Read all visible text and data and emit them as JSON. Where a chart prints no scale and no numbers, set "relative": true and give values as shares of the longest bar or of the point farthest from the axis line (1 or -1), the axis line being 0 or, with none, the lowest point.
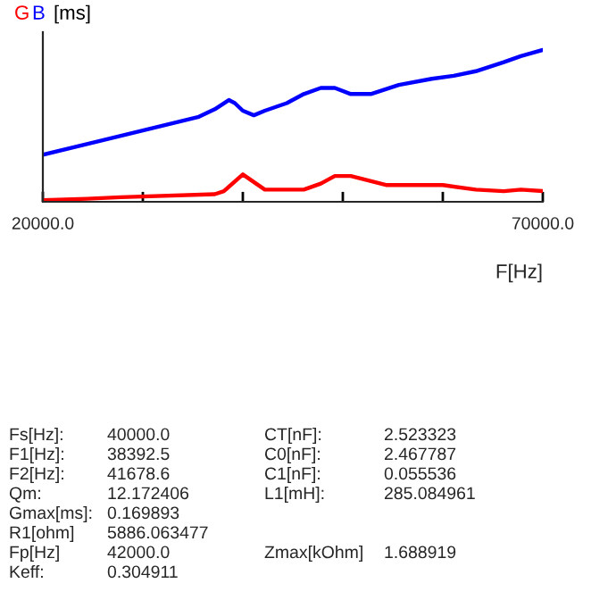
{
  "chart_data": {
    "type": "line",
    "relative": true,
    "ylabel": "[ms]",
    "xlabel": "F[Hz]",
    "xlim": [
      20000,
      70000
    ],
    "xticks": [
      {
        "value": 20000,
        "label": "20000.0"
      },
      {
        "value": 30000,
        "label": null
      },
      {
        "value": 40000,
        "label": null
      },
      {
        "value": 50000,
        "label": null
      },
      {
        "value": 60000,
        "label": null
      },
      {
        "value": 70000,
        "label": "70000.0"
      }
    ],
    "grid": false,
    "legend": "top left",
    "marker": "none",
    "line_style": "solid",
    "series": [
      {
        "name": "G",
        "color": "#ff0000",
        "x": [
          20000,
          24400,
          27800,
          37200,
          38100,
          40000,
          42200,
          46100,
          47800,
          49200,
          50800,
          54400,
          60000,
          63300,
          66100,
          67800,
          70000
        ],
        "values": [
          0.01,
          0.02,
          0.03,
          0.05,
          0.07,
          0.18,
          0.08,
          0.08,
          0.12,
          0.17,
          0.17,
          0.11,
          0.11,
          0.08,
          0.07,
          0.08,
          0.07
        ]
      },
      {
        "name": "B",
        "color": "#0000ff",
        "x": [
          20000,
          24400,
          30000,
          35600,
          37200,
          38600,
          39200,
          40000,
          41100,
          42200,
          44400,
          46100,
          47800,
          49200,
          50800,
          52800,
          55600,
          58900,
          61100,
          63300,
          66100,
          67800,
          70000
        ],
        "values": [
          0.31,
          0.38,
          0.47,
          0.56,
          0.61,
          0.67,
          0.65,
          0.6,
          0.57,
          0.6,
          0.65,
          0.71,
          0.75,
          0.75,
          0.71,
          0.71,
          0.77,
          0.81,
          0.83,
          0.86,
          0.92,
          0.96,
          1
        ]
      }
    ],
    "annotations": [
      "Fs[Hz]:",
      "40000.0",
      "CT[nF]:",
      "2.523323",
      "F1[Hz]:",
      "38392.5",
      "C0[nF]:",
      "2.467787",
      "F2[Hz]:",
      "41678.6",
      "C1[nF]:",
      "0.055536",
      "Qm:",
      "12.172406",
      "L1[mH]:",
      "285.084961",
      "Gmax[ms]:",
      "0.169893",
      "R1[ohm]",
      "5886.063477",
      "Fp[Hz]",
      "42000.0",
      "Zmax[kOhm]",
      "1.688919",
      "Keff:",
      "0.304911"
    ]
  }
}
